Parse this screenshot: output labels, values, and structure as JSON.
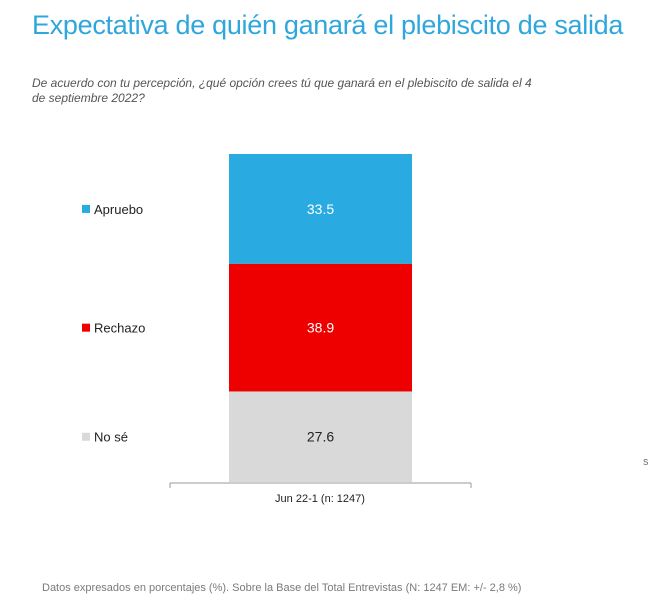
{
  "chart_data": {
    "type": "bar",
    "stacked": true,
    "title": "Expectativa de quién ganará el plebiscito de salida",
    "subtitle": "De acuerdo con tu percepción, ¿qué opción crees tú que ganará en el plebiscito de salida el 4 de septiembre 2022?",
    "categories": [
      "Jun 22-1 (n: 1247)"
    ],
    "series": [
      {
        "name": "Apruebo",
        "values": [
          33.5
        ],
        "color": "#29abe2",
        "label_color": "#ffffff"
      },
      {
        "name": "Rechazo",
        "values": [
          38.9
        ],
        "color": "#ee0000",
        "label_color": "#ffffff"
      },
      {
        "name": "No sé",
        "values": [
          27.6
        ],
        "color": "#d9d9d9",
        "label_color": "#222222"
      }
    ],
    "legend_position": "left",
    "ylim": [
      0,
      100
    ]
  },
  "footer": "Datos expresados en porcentajes (%). Sobre la Base del Total Entrevistas (N: 1247  EM: +/- 2,8 %)",
  "stray_text": "s"
}
